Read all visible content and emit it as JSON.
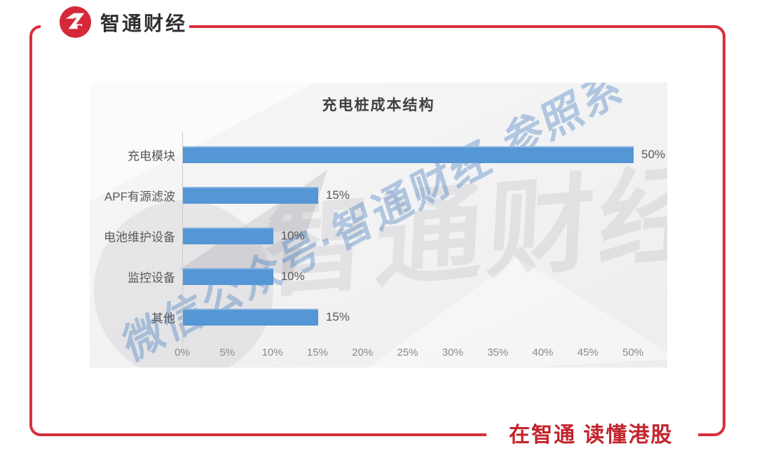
{
  "brand": {
    "logo_text": "智通财经",
    "slogan": "在智通  读懂港股",
    "frame_red": "#d9303c",
    "logo_red": "#d5293a",
    "slogan_red": "#c3242e"
  },
  "watermark": {
    "gray_text": "智通财经",
    "blue_text": "微信公众号·智通财经·参照系"
  },
  "chart_data": {
    "type": "bar",
    "orientation": "horizontal",
    "title": "充电桩成本结构",
    "categories": [
      "充电模块",
      "APF有源滤波",
      "电池维护设备",
      "监控设备",
      "其他"
    ],
    "values": [
      50,
      15,
      10,
      10,
      15
    ],
    "value_labels": [
      "50%",
      "15%",
      "10%",
      "10%",
      "15%"
    ],
    "x_ticks": [
      "0%",
      "5%",
      "10%",
      "15%",
      "20%",
      "25%",
      "30%",
      "35%",
      "40%",
      "45%",
      "50%"
    ],
    "x_tick_values": [
      0,
      5,
      10,
      15,
      20,
      25,
      30,
      35,
      40,
      45,
      50
    ],
    "xlim": [
      0,
      50
    ],
    "xlabel": "",
    "ylabel": "",
    "bar_color": "#5596d5",
    "grid": "off",
    "legend": "none"
  }
}
